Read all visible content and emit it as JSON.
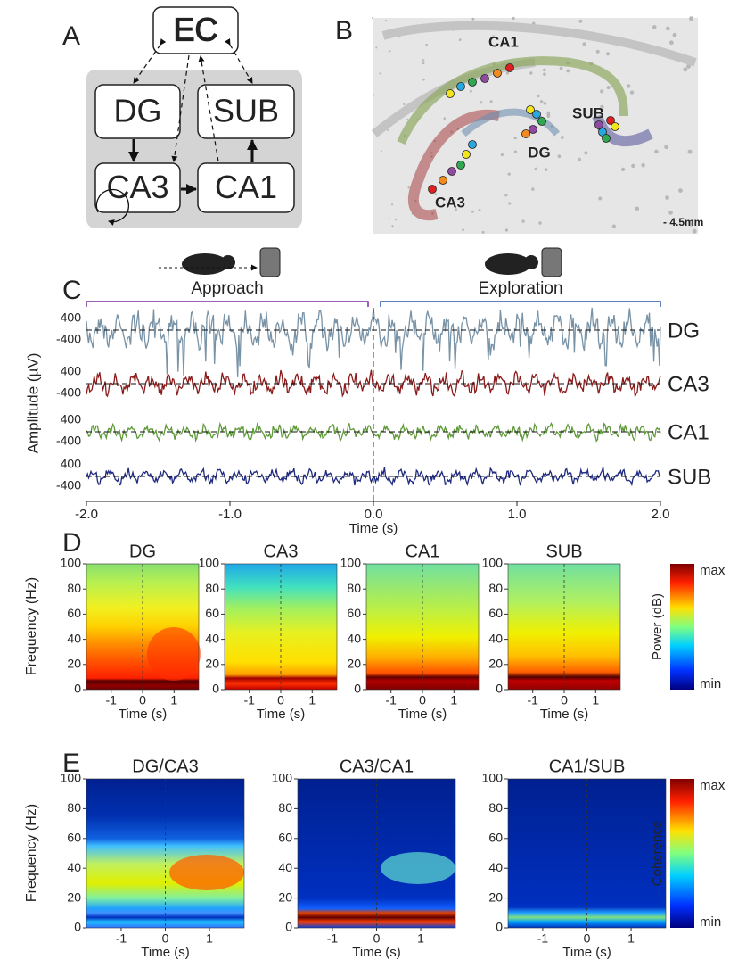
{
  "panel_a": {
    "label": "A",
    "nodes": [
      "EC",
      "DG",
      "SUB",
      "CA3",
      "CA1"
    ]
  },
  "panel_b": {
    "label": "B",
    "regions": [
      "CA1",
      "SUB",
      "DG",
      "CA3"
    ],
    "coordinate": "- 4.5mm"
  },
  "panel_c": {
    "label": "C",
    "phases": [
      "Approach",
      "Exploration"
    ],
    "y_label": "Amplitude (µV)",
    "channels": [
      {
        "name": "DG",
        "color": "#7892a6"
      },
      {
        "name": "CA3",
        "color": "#8b1a1a"
      },
      {
        "name": "CA1",
        "color": "#5f9a3a"
      },
      {
        "name": "SUB",
        "color": "#1f2a80"
      }
    ],
    "amplitude_ticks": [
      "400",
      "-400"
    ],
    "x_ticks": [
      "-2.0",
      "-1.0",
      "0.0",
      "1.0",
      "2.0"
    ],
    "x_label": "Time (s)"
  },
  "panel_d": {
    "label": "D",
    "titles": [
      "DG",
      "CA3",
      "CA1",
      "SUB"
    ],
    "y_label": "Frequency (Hz)",
    "y_ticks": [
      "0",
      "20",
      "40",
      "60",
      "80",
      "100"
    ],
    "x_ticks": [
      "-1",
      "0",
      "1"
    ],
    "x_label": "Time (s)",
    "colorbar": {
      "label": "Power (dB)",
      "max": "max",
      "min": "min"
    }
  },
  "panel_e": {
    "label": "E",
    "titles": [
      "DG/CA3",
      "CA3/CA1",
      "CA1/SUB"
    ],
    "y_label": "Frequency (Hz)",
    "y_ticks": [
      "0",
      "20",
      "40",
      "60",
      "80",
      "100"
    ],
    "x_ticks": [
      "-1",
      "0",
      "1"
    ],
    "x_label": "Time (s)",
    "colorbar": {
      "label": "Coherence",
      "max": "max",
      "min": "min"
    }
  }
}
